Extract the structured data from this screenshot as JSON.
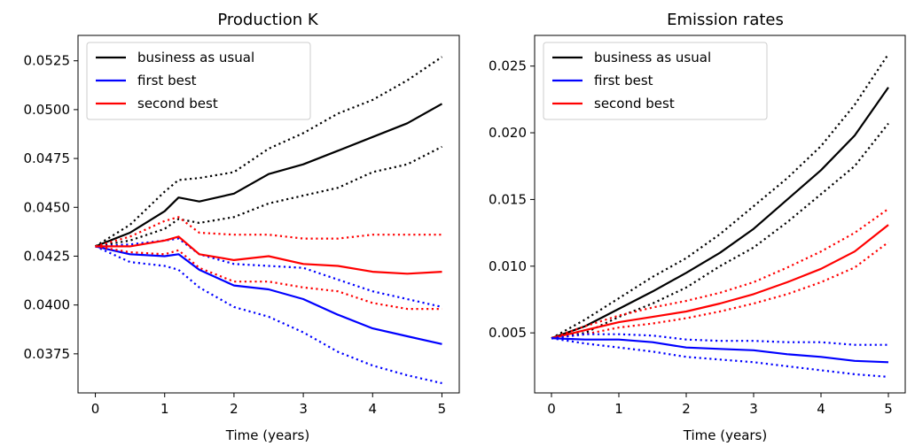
{
  "chart_data": [
    {
      "type": "line",
      "title": "Production K",
      "xlabel": "Time (years)",
      "ylabel": "",
      "xlim": [
        -0.25,
        5.25
      ],
      "ylim": [
        0.0355,
        0.0538
      ],
      "xticks": [
        0,
        1,
        2,
        3,
        4,
        5
      ],
      "xtick_labels": [
        "0",
        "1",
        "2",
        "3",
        "4",
        "5"
      ],
      "yticks": [
        0.0375,
        0.04,
        0.0425,
        0.045,
        0.0475,
        0.05,
        0.0525
      ],
      "ytick_labels": [
        "0.0375",
        "0.0400",
        "0.0425",
        "0.0450",
        "0.0475",
        "0.0500",
        "0.0525"
      ],
      "legend_position": "upper-left",
      "legend": [
        {
          "label": "business as usual",
          "color": "#000000"
        },
        {
          "label": "first best",
          "color": "#0000ff"
        },
        {
          "label": "second best",
          "color": "#ff0000"
        }
      ],
      "series": [
        {
          "color": "#000000",
          "style": "solid",
          "x": [
            0,
            0.5,
            1,
            1.2,
            1.5,
            2,
            2.5,
            3,
            3.5,
            4,
            4.5,
            5
          ],
          "y": [
            0.043,
            0.0437,
            0.0448,
            0.0455,
            0.0453,
            0.0457,
            0.0467,
            0.0472,
            0.0479,
            0.0486,
            0.0493,
            0.0503
          ]
        },
        {
          "color": "#000000",
          "style": "dotted",
          "x": [
            0,
            0.5,
            1,
            1.2,
            1.5,
            2,
            2.5,
            3,
            3.5,
            4,
            4.5,
            5
          ],
          "y": [
            0.043,
            0.0441,
            0.0458,
            0.0464,
            0.0465,
            0.0468,
            0.048,
            0.0488,
            0.0498,
            0.0505,
            0.0515,
            0.0527
          ]
        },
        {
          "color": "#000000",
          "style": "dotted",
          "x": [
            0,
            0.5,
            1,
            1.2,
            1.5,
            2,
            2.5,
            3,
            3.5,
            4,
            4.5,
            5
          ],
          "y": [
            0.043,
            0.0433,
            0.0439,
            0.0444,
            0.0442,
            0.0445,
            0.0452,
            0.0456,
            0.046,
            0.0468,
            0.0472,
            0.0481
          ]
        },
        {
          "color": "#0000ff",
          "style": "solid",
          "x": [
            0,
            0.5,
            1,
            1.2,
            1.5,
            2,
            2.5,
            3,
            3.5,
            4,
            4.5,
            5
          ],
          "y": [
            0.043,
            0.0426,
            0.0425,
            0.0426,
            0.0418,
            0.041,
            0.0408,
            0.0403,
            0.0395,
            0.0388,
            0.0384,
            0.038
          ]
        },
        {
          "color": "#0000ff",
          "style": "dotted",
          "x": [
            0,
            0.5,
            1,
            1.2,
            1.5,
            2,
            2.5,
            3,
            3.5,
            4,
            4.5,
            5
          ],
          "y": [
            0.043,
            0.0431,
            0.0433,
            0.0434,
            0.0426,
            0.0421,
            0.042,
            0.0419,
            0.0413,
            0.0407,
            0.0403,
            0.0399
          ]
        },
        {
          "color": "#0000ff",
          "style": "dotted",
          "x": [
            0,
            0.5,
            1,
            1.2,
            1.5,
            2,
            2.5,
            3,
            3.5,
            4,
            4.5,
            5
          ],
          "y": [
            0.043,
            0.0422,
            0.042,
            0.0418,
            0.0409,
            0.0399,
            0.0394,
            0.0386,
            0.0376,
            0.0369,
            0.0364,
            0.036
          ]
        },
        {
          "color": "#ff0000",
          "style": "solid",
          "x": [
            0,
            0.5,
            1,
            1.2,
            1.5,
            2,
            2.5,
            3,
            3.5,
            4,
            4.5,
            5
          ],
          "y": [
            0.043,
            0.043,
            0.0433,
            0.0435,
            0.0426,
            0.0423,
            0.0425,
            0.0421,
            0.042,
            0.0417,
            0.0416,
            0.0417
          ]
        },
        {
          "color": "#ff0000",
          "style": "dotted",
          "x": [
            0,
            0.5,
            1,
            1.2,
            1.5,
            2,
            2.5,
            3,
            3.5,
            4,
            4.5,
            5
          ],
          "y": [
            0.043,
            0.0435,
            0.0443,
            0.0445,
            0.0437,
            0.0436,
            0.0436,
            0.0434,
            0.0434,
            0.0436,
            0.0436,
            0.0436
          ]
        },
        {
          "color": "#ff0000",
          "style": "dotted",
          "x": [
            0,
            0.5,
            1,
            1.2,
            1.5,
            2,
            2.5,
            3,
            3.5,
            4,
            4.5,
            5
          ],
          "y": [
            0.043,
            0.0427,
            0.0426,
            0.0428,
            0.0419,
            0.0412,
            0.0412,
            0.0409,
            0.0407,
            0.0401,
            0.0398,
            0.0398
          ]
        }
      ]
    },
    {
      "type": "line",
      "title": "Emission rates",
      "xlabel": "Time (years)",
      "ylabel": "",
      "xlim": [
        -0.25,
        5.25
      ],
      "ylim": [
        0.0005,
        0.0273
      ],
      "xticks": [
        0,
        1,
        2,
        3,
        4,
        5
      ],
      "xtick_labels": [
        "0",
        "1",
        "2",
        "3",
        "4",
        "5"
      ],
      "yticks": [
        0.005,
        0.01,
        0.015,
        0.02,
        0.025
      ],
      "ytick_labels": [
        "0.005",
        "0.010",
        "0.015",
        "0.020",
        "0.025"
      ],
      "legend_position": "upper-left",
      "legend": [
        {
          "label": "business as usual",
          "color": "#000000"
        },
        {
          "label": "first best",
          "color": "#0000ff"
        },
        {
          "label": "second best",
          "color": "#ff0000"
        }
      ],
      "series": [
        {
          "color": "#000000",
          "style": "solid",
          "x": [
            0,
            0.5,
            1,
            1.5,
            2,
            2.5,
            3,
            3.5,
            4,
            4.5,
            5
          ],
          "y": [
            0.0046,
            0.0055,
            0.0068,
            0.0081,
            0.0095,
            0.011,
            0.0128,
            0.015,
            0.0172,
            0.0198,
            0.0234
          ]
        },
        {
          "color": "#000000",
          "style": "dotted",
          "x": [
            0,
            0.5,
            1,
            1.5,
            2,
            2.5,
            3,
            3.5,
            4,
            4.5,
            5
          ],
          "y": [
            0.0046,
            0.006,
            0.0076,
            0.0092,
            0.0106,
            0.0124,
            0.0145,
            0.0166,
            0.019,
            0.0221,
            0.0259
          ]
        },
        {
          "color": "#000000",
          "style": "dotted",
          "x": [
            0,
            0.5,
            1,
            1.5,
            2,
            2.5,
            3,
            3.5,
            4,
            4.5,
            5
          ],
          "y": [
            0.0046,
            0.005,
            0.0062,
            0.0072,
            0.0084,
            0.01,
            0.0114,
            0.0133,
            0.0154,
            0.0175,
            0.0207
          ]
        },
        {
          "color": "#ff0000",
          "style": "solid",
          "x": [
            0,
            0.5,
            1,
            1.5,
            2,
            2.5,
            3,
            3.5,
            4,
            4.5,
            5
          ],
          "y": [
            0.0046,
            0.0052,
            0.0058,
            0.0062,
            0.0066,
            0.0072,
            0.0079,
            0.0088,
            0.0098,
            0.0111,
            0.0131
          ]
        },
        {
          "color": "#ff0000",
          "style": "dotted",
          "x": [
            0,
            0.5,
            1,
            1.5,
            2,
            2.5,
            3,
            3.5,
            4,
            4.5,
            5
          ],
          "y": [
            0.0046,
            0.0055,
            0.0063,
            0.0069,
            0.0074,
            0.008,
            0.0088,
            0.0099,
            0.0111,
            0.0125,
            0.0143
          ]
        },
        {
          "color": "#ff0000",
          "style": "dotted",
          "x": [
            0,
            0.5,
            1,
            1.5,
            2,
            2.5,
            3,
            3.5,
            4,
            4.5,
            5
          ],
          "y": [
            0.0046,
            0.0049,
            0.0054,
            0.0057,
            0.0061,
            0.0066,
            0.0072,
            0.0079,
            0.0088,
            0.0099,
            0.0118
          ]
        },
        {
          "color": "#0000ff",
          "style": "solid",
          "x": [
            0,
            0.5,
            1,
            1.5,
            2,
            2.5,
            3,
            3.5,
            4,
            4.5,
            5
          ],
          "y": [
            0.0046,
            0.0045,
            0.0045,
            0.0043,
            0.0039,
            0.0038,
            0.0037,
            0.0034,
            0.0032,
            0.0029,
            0.0028
          ]
        },
        {
          "color": "#0000ff",
          "style": "dotted",
          "x": [
            0,
            0.5,
            1,
            1.5,
            2,
            2.5,
            3,
            3.5,
            4,
            4.5,
            5
          ],
          "y": [
            0.0046,
            0.0049,
            0.0049,
            0.0048,
            0.0045,
            0.0044,
            0.0044,
            0.0043,
            0.0043,
            0.0041,
            0.0041
          ]
        },
        {
          "color": "#0000ff",
          "style": "dotted",
          "x": [
            0,
            0.5,
            1,
            1.5,
            2,
            2.5,
            3,
            3.5,
            4,
            4.5,
            5
          ],
          "y": [
            0.0046,
            0.0042,
            0.0039,
            0.0036,
            0.0032,
            0.003,
            0.0028,
            0.0025,
            0.0022,
            0.0019,
            0.0017
          ]
        }
      ]
    }
  ]
}
